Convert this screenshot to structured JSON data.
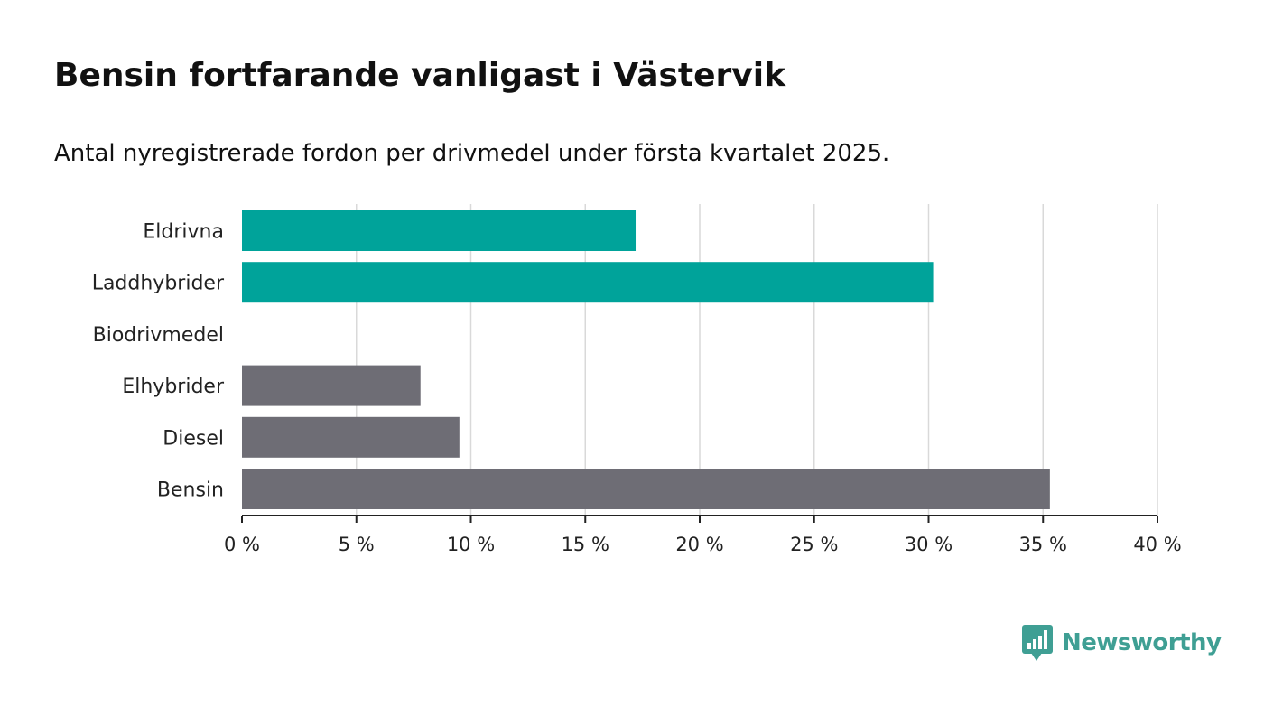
{
  "title": "Bensin fortfarande vanligast i Västervik",
  "subtitle": "Antal nyregistrerade fordon per drivmedel under första kvartalet 2025.",
  "brand": {
    "name": "Newsworthy",
    "icon": "bar-chart-speech-bubble-icon",
    "color": "#3f9f94"
  },
  "colors": {
    "electric": "#00a39a",
    "fossil": "#6e6d75",
    "grid": "#d9d9d9",
    "axis": "#222222"
  },
  "chart_data": {
    "type": "bar",
    "orientation": "horizontal",
    "categories": [
      "Eldrivna",
      "Laddhybrider",
      "Biodrivmedel",
      "Elhybrider",
      "Diesel",
      "Bensin"
    ],
    "values": [
      17.2,
      30.2,
      0,
      7.8,
      9.5,
      35.3
    ],
    "bar_colors": [
      "#00a39a",
      "#00a39a",
      "#00a39a",
      "#6e6d75",
      "#6e6d75",
      "#6e6d75"
    ],
    "xlim": [
      0,
      40
    ],
    "ticks": [
      0,
      5,
      10,
      15,
      20,
      25,
      30,
      35,
      40
    ],
    "tick_labels": [
      "0 %",
      "5 %",
      "10 %",
      "15 %",
      "20 %",
      "25 %",
      "30 %",
      "35 %",
      "40 %"
    ],
    "xlabel": "",
    "ylabel": "",
    "grid": true,
    "legend": "none"
  }
}
